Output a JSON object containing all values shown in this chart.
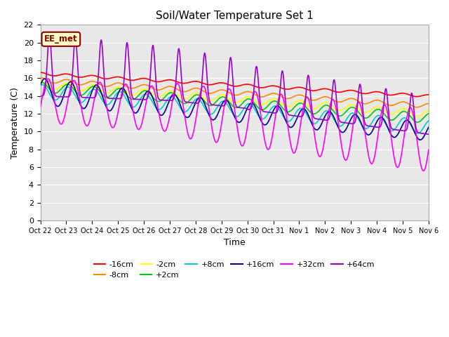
{
  "title": "Soil/Water Temperature Set 1",
  "xlabel": "Time",
  "ylabel": "Temperature (C)",
  "ylim": [
    0,
    22
  ],
  "yticks": [
    0,
    2,
    4,
    6,
    8,
    10,
    12,
    14,
    16,
    18,
    20,
    22
  ],
  "background_color": "#ffffff",
  "plot_bg_color": "#e8e8e8",
  "annotation_text": "EE_met",
  "annotation_bg": "#ffffcc",
  "annotation_border": "#8b0000",
  "series": [
    {
      "label": "-16cm",
      "color": "#ff0000"
    },
    {
      "label": "-8cm",
      "color": "#ff8800"
    },
    {
      "label": "-2cm",
      "color": "#ffff00"
    },
    {
      "label": "+2cm",
      "color": "#00cc00"
    },
    {
      "label": "+8cm",
      "color": "#00cccc"
    },
    {
      "label": "+16cm",
      "color": "#000099"
    },
    {
      "label": "+32cm",
      "color": "#ff00ff"
    },
    {
      "label": "+64cm",
      "color": "#9900cc"
    }
  ],
  "xtick_labels": [
    "Oct 22",
    "Oct 23",
    "Oct 24",
    "Oct 25",
    "Oct 26",
    "Oct 27",
    "Oct 28",
    "Oct 29",
    "Oct 30",
    "Oct 31",
    "Nov 1",
    "Nov 2",
    "Nov 3",
    "Nov 4",
    "Nov 5",
    "Nov 6"
  ],
  "n_days": 15
}
